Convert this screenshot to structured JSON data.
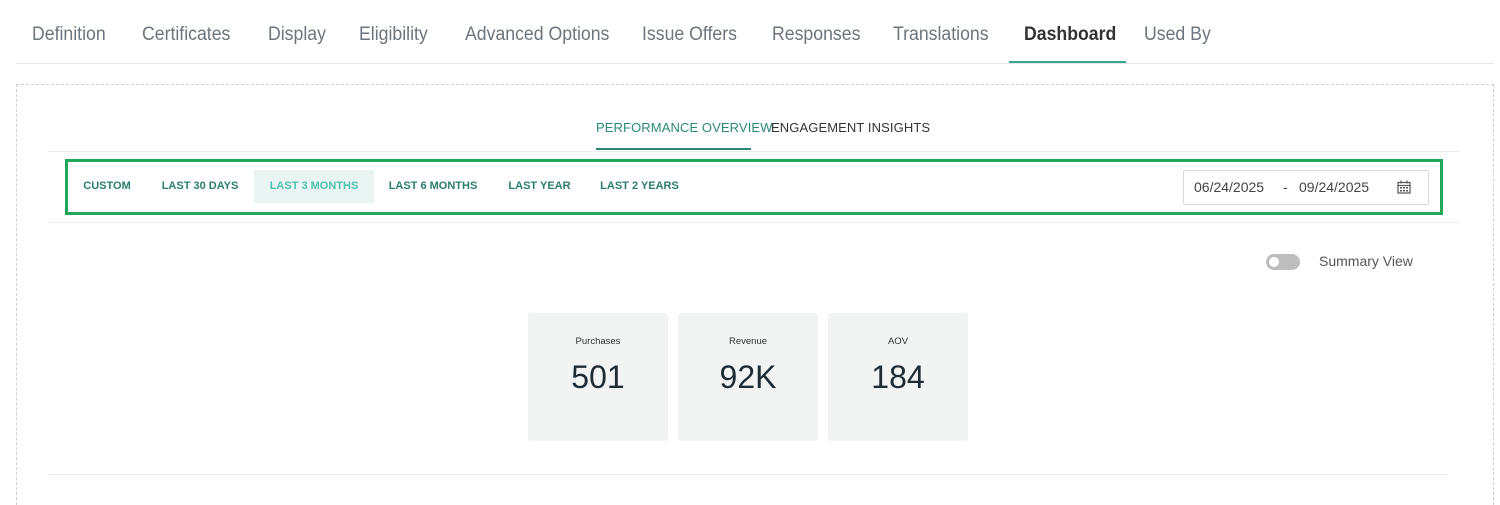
{
  "top_tabs": [
    "Definition",
    "Certificates",
    "Display",
    "Eligibility",
    "Advanced Options",
    "Issue Offers",
    "Responses",
    "Translations",
    "Dashboard",
    "Used By"
  ],
  "active_top_tab": "Dashboard",
  "sub_tabs": {
    "performance": "PERFORMANCE OVERVIEW",
    "engagement": "ENGAGEMENT INSIGHTS",
    "active": "PERFORMANCE OVERVIEW"
  },
  "date_ranges": [
    "CUSTOM",
    "LAST 30 DAYS",
    "LAST 3 MONTHS",
    "LAST 6 MONTHS",
    "LAST YEAR",
    "LAST 2 YEARS"
  ],
  "active_range": "LAST 3 MONTHS",
  "date_field": {
    "start": "06/24/2025",
    "separator": "-",
    "end": "09/24/2025",
    "icon": "calendar-icon"
  },
  "summary_toggle": {
    "label": "Summary View",
    "on": false
  },
  "kpis": {
    "purchases": {
      "label": "Purchases",
      "value": "501"
    },
    "revenue": {
      "label": "Revenue",
      "value": "92K"
    },
    "aov": {
      "label": "AOV",
      "value": "184"
    }
  },
  "colors": {
    "accent": "#2b8878",
    "highlight_border": "#22a659",
    "active_range_bg": "#e9f5f3"
  }
}
